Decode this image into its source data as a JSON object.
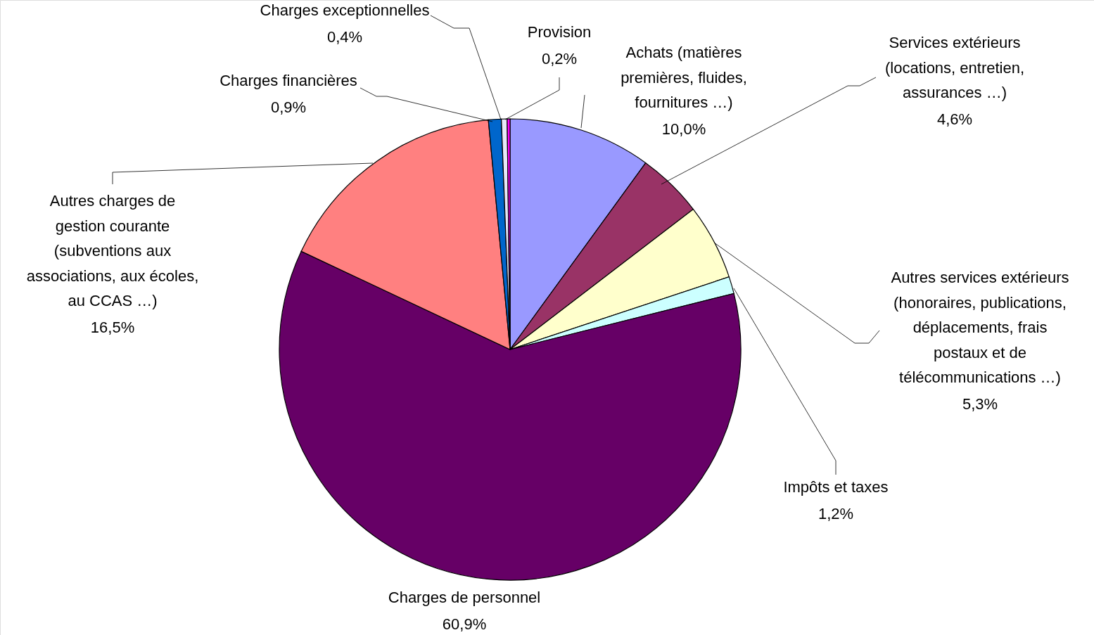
{
  "chart_data": {
    "type": "pie",
    "categories": [
      "Achats (matières\npremières, fluides,\nfournitures …)",
      "Services extérieurs\n(locations, entretien,\nassurances …)",
      "Autres services extérieurs\n(honoraires, publications,\ndéplacements, frais\npostaux et de\ntélécommunications …)",
      "Impôts et taxes",
      "Charges de personnel",
      "Autres charges de\ngestion courante\n(subventions aux\nassociations, aux écoles,\nau CCAS …)",
      "Charges financières",
      "Charges exceptionnelles",
      "Provision"
    ],
    "values": [
      10.0,
      4.6,
      5.3,
      1.2,
      60.9,
      16.5,
      0.9,
      0.4,
      0.2
    ],
    "colors": [
      "#9999ff",
      "#993366",
      "#ffffcc",
      "#ccffff",
      "#660066",
      "#ff8080",
      "#0066cc",
      "#e8e8f8",
      "#ff00ff"
    ],
    "value_labels": [
      "10,0%",
      "4,6%",
      "5,3%",
      "1,2%",
      "60,9%",
      "16,5%",
      "0,9%",
      "0,4%",
      "0,2%"
    ]
  }
}
